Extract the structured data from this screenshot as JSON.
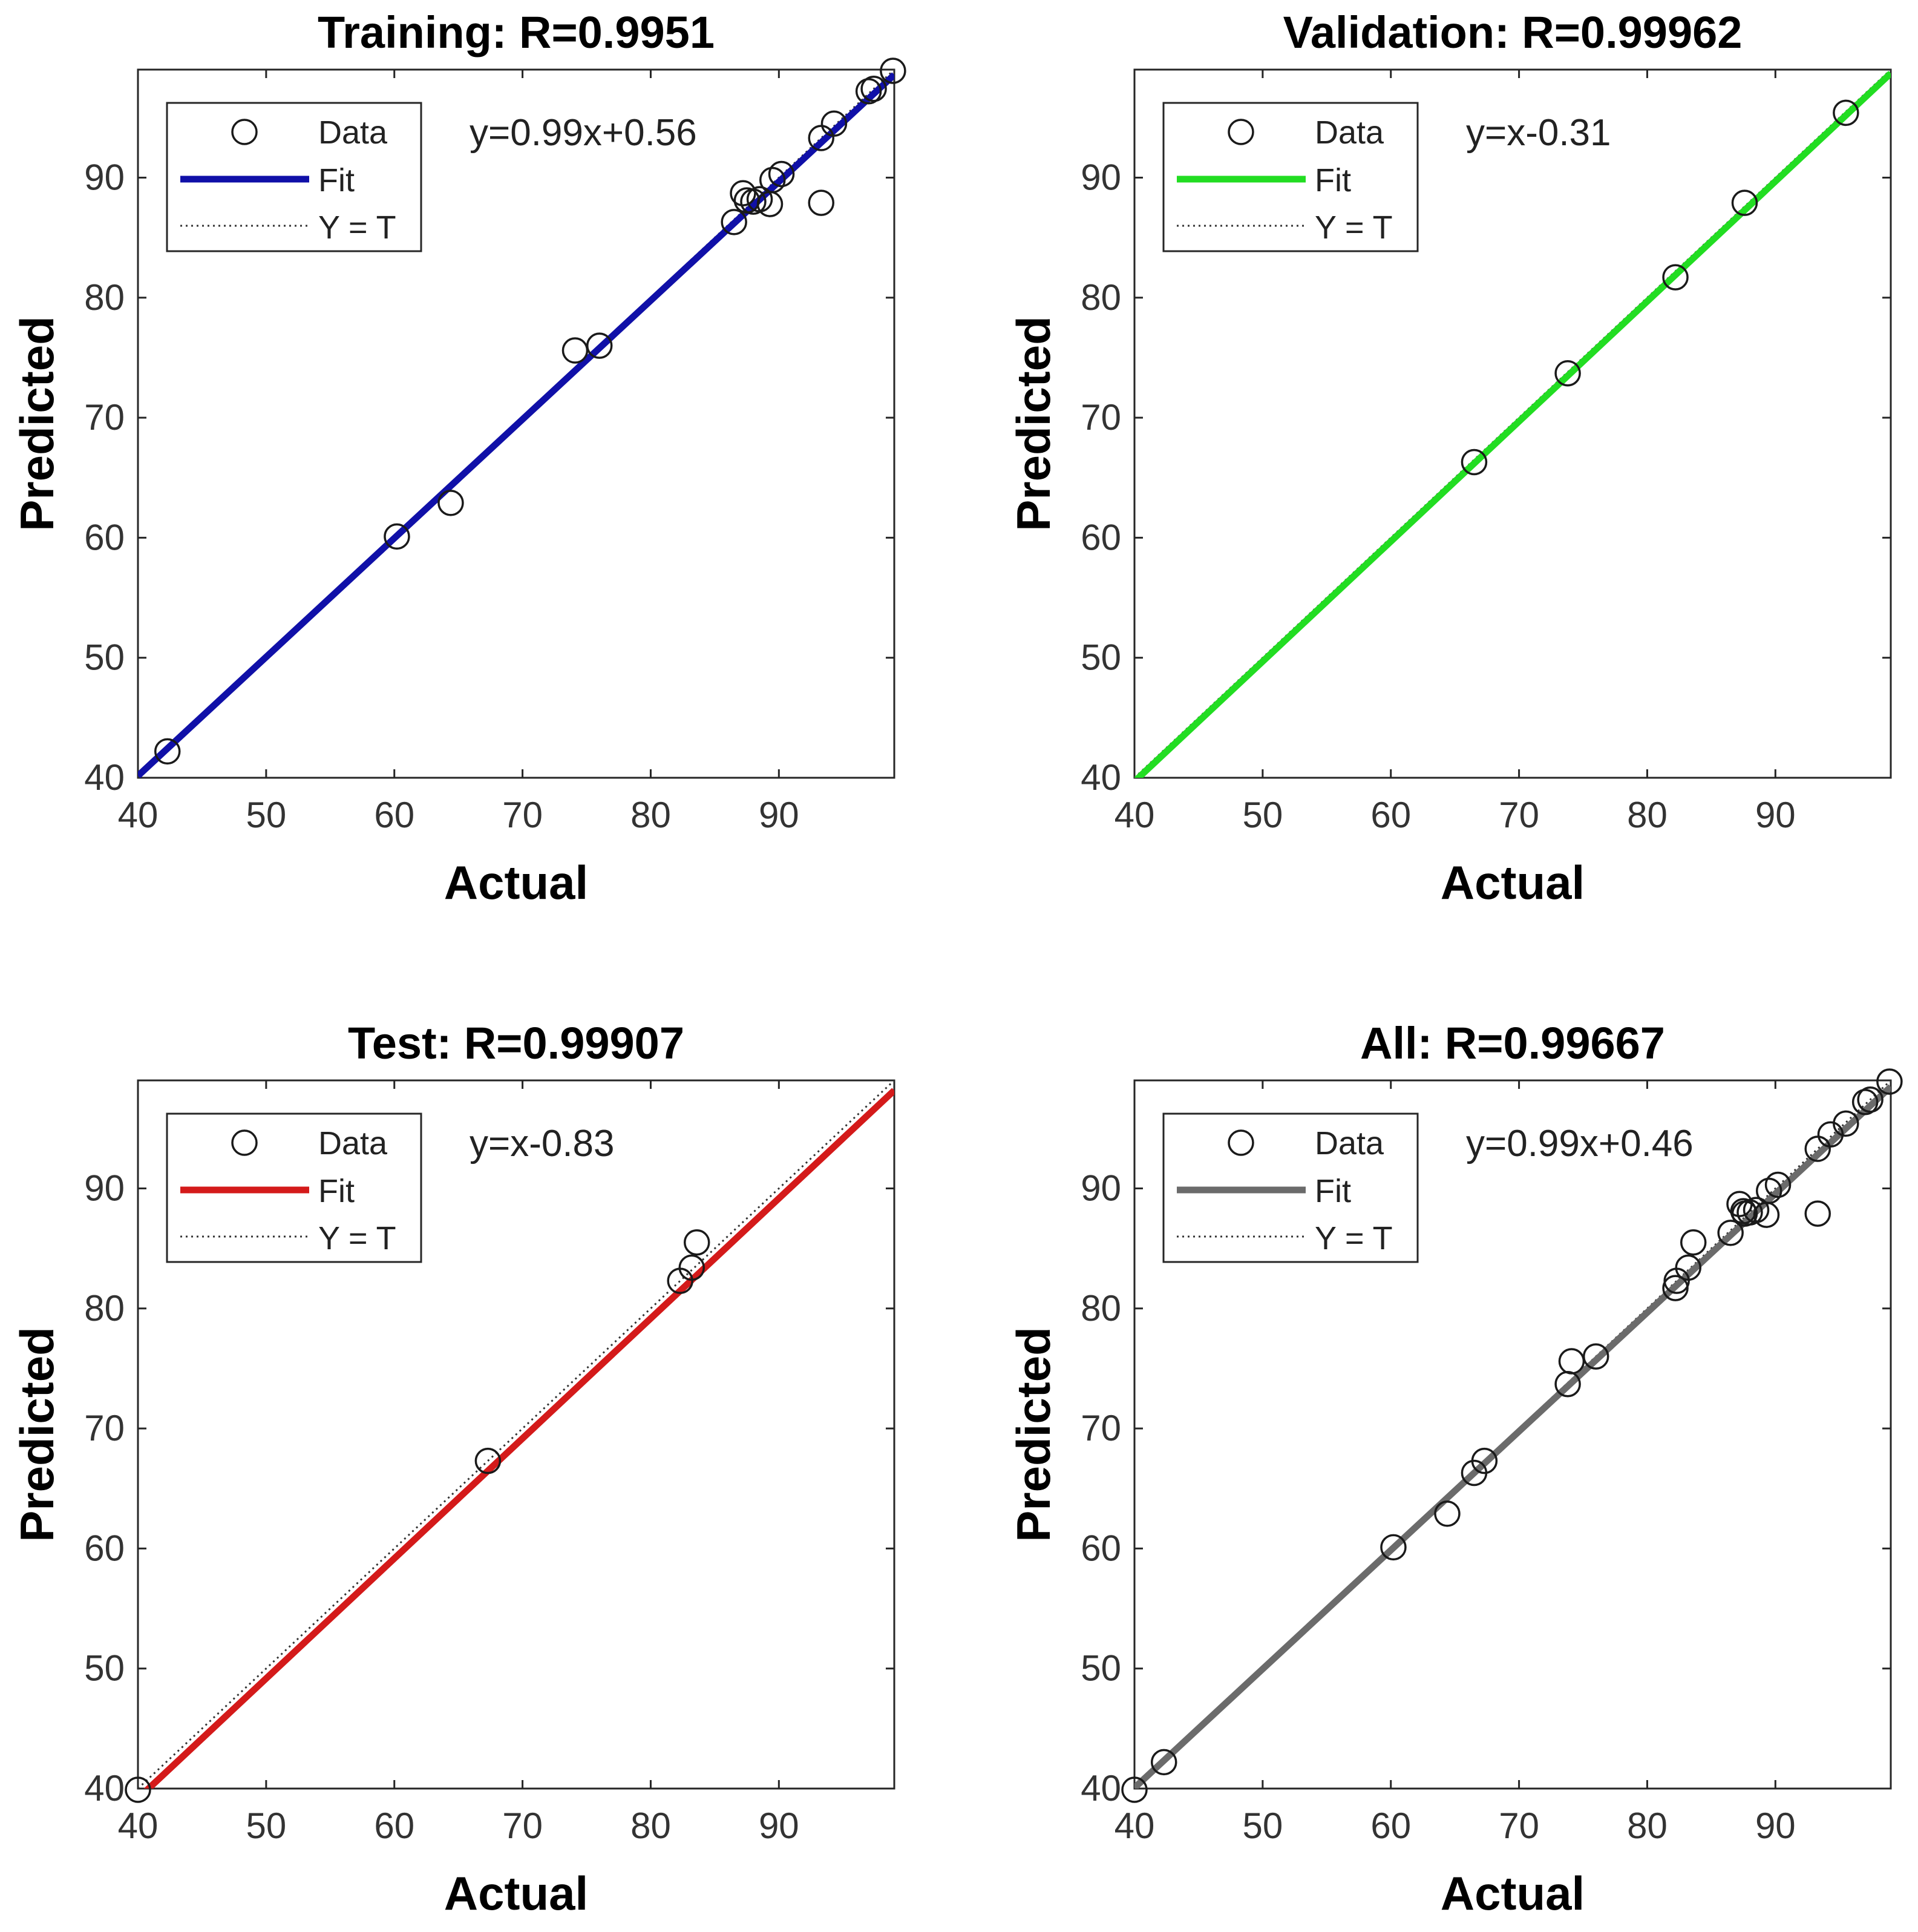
{
  "figure": {
    "legend_labels": [
      "Data",
      "Fit",
      "Y = T"
    ]
  },
  "chart_data": [
    {
      "type": "scatter",
      "title": "Training: R=0.9951",
      "xlabel": "Actual",
      "ylabel": "Predicted",
      "xlim": [
        40,
        99
      ],
      "ylim": [
        40,
        99
      ],
      "xticks": [
        40,
        50,
        60,
        70,
        80,
        90
      ],
      "yticks": [
        40,
        50,
        60,
        70,
        80,
        90
      ],
      "fit_equation": "y=0.99x+0.56",
      "fit": {
        "slope": 0.99,
        "intercept": 0.56
      },
      "fit_color": "#1010a8",
      "legend": [
        "Data",
        "Fit",
        "Y = T"
      ],
      "legend_position": "top-left",
      "points": [
        {
          "x": 42.3,
          "y": 42.2
        },
        {
          "x": 60.2,
          "y": 60.1
        },
        {
          "x": 64.4,
          "y": 62.9
        },
        {
          "x": 74.1,
          "y": 75.6
        },
        {
          "x": 76.0,
          "y": 76.0
        },
        {
          "x": 86.5,
          "y": 86.3
        },
        {
          "x": 87.2,
          "y": 88.7
        },
        {
          "x": 87.5,
          "y": 88.1
        },
        {
          "x": 88.0,
          "y": 88.0
        },
        {
          "x": 88.5,
          "y": 88.2
        },
        {
          "x": 89.3,
          "y": 87.8
        },
        {
          "x": 89.5,
          "y": 89.8
        },
        {
          "x": 90.2,
          "y": 90.3
        },
        {
          "x": 93.3,
          "y": 87.9
        },
        {
          "x": 93.3,
          "y": 93.3
        },
        {
          "x": 94.3,
          "y": 94.5
        },
        {
          "x": 97.0,
          "y": 97.2
        },
        {
          "x": 97.4,
          "y": 97.4
        },
        {
          "x": 98.9,
          "y": 98.9
        }
      ]
    },
    {
      "type": "scatter",
      "title": "Validation: R=0.99962",
      "xlabel": "Actual",
      "ylabel": "Predicted",
      "xlim": [
        40,
        99
      ],
      "ylim": [
        40,
        99
      ],
      "xticks": [
        40,
        50,
        60,
        70,
        80,
        90
      ],
      "yticks": [
        40,
        50,
        60,
        70,
        80,
        90
      ],
      "fit_equation": "y=x-0.31",
      "fit": {
        "slope": 1.0,
        "intercept": -0.31
      },
      "fit_color": "#22dd22",
      "legend": [
        "Data",
        "Fit",
        "Y = T"
      ],
      "legend_position": "top-left",
      "points": [
        {
          "x": 66.5,
          "y": 66.3
        },
        {
          "x": 73.8,
          "y": 73.7
        },
        {
          "x": 82.2,
          "y": 81.7
        },
        {
          "x": 87.6,
          "y": 87.9
        },
        {
          "x": 95.5,
          "y": 95.4
        }
      ]
    },
    {
      "type": "scatter",
      "title": "Test: R=0.99907",
      "xlabel": "Actual",
      "ylabel": "Predicted",
      "xlim": [
        40,
        99
      ],
      "ylim": [
        40,
        99
      ],
      "xticks": [
        40,
        50,
        60,
        70,
        80,
        90
      ],
      "yticks": [
        40,
        50,
        60,
        70,
        80,
        90
      ],
      "fit_equation": "y=x-0.83",
      "fit": {
        "slope": 1.0,
        "intercept": -0.83
      },
      "fit_color": "#d41a1a",
      "legend": [
        "Data",
        "Fit",
        "Y = T"
      ],
      "legend_position": "top-left",
      "points": [
        {
          "x": 40.0,
          "y": 39.9
        },
        {
          "x": 67.3,
          "y": 67.3
        },
        {
          "x": 82.3,
          "y": 82.3
        },
        {
          "x": 83.2,
          "y": 83.4
        },
        {
          "x": 83.6,
          "y": 85.5
        }
      ]
    },
    {
      "type": "scatter",
      "title": "All: R=0.99667",
      "xlabel": "Actual",
      "ylabel": "Predicted",
      "xlim": [
        40,
        99
      ],
      "ylim": [
        40,
        99
      ],
      "xticks": [
        40,
        50,
        60,
        70,
        80,
        90
      ],
      "yticks": [
        40,
        50,
        60,
        70,
        80,
        90
      ],
      "fit_equation": "y=0.99x+0.46",
      "fit": {
        "slope": 0.99,
        "intercept": 0.46
      },
      "fit_color": "#6b6b6b",
      "legend": [
        "Data",
        "Fit",
        "Y = T"
      ],
      "legend_position": "top-left",
      "points": [
        {
          "x": 40.0,
          "y": 39.9
        },
        {
          "x": 42.3,
          "y": 42.2
        },
        {
          "x": 60.2,
          "y": 60.1
        },
        {
          "x": 64.4,
          "y": 62.9
        },
        {
          "x": 66.5,
          "y": 66.3
        },
        {
          "x": 67.3,
          "y": 67.3
        },
        {
          "x": 73.8,
          "y": 73.7
        },
        {
          "x": 74.1,
          "y": 75.6
        },
        {
          "x": 76.0,
          "y": 76.0
        },
        {
          "x": 82.2,
          "y": 81.7
        },
        {
          "x": 82.3,
          "y": 82.3
        },
        {
          "x": 83.2,
          "y": 83.4
        },
        {
          "x": 83.6,
          "y": 85.5
        },
        {
          "x": 86.5,
          "y": 86.3
        },
        {
          "x": 87.2,
          "y": 88.7
        },
        {
          "x": 87.5,
          "y": 88.1
        },
        {
          "x": 87.6,
          "y": 87.9
        },
        {
          "x": 88.0,
          "y": 88.0
        },
        {
          "x": 88.5,
          "y": 88.2
        },
        {
          "x": 89.3,
          "y": 87.8
        },
        {
          "x": 89.5,
          "y": 89.8
        },
        {
          "x": 90.2,
          "y": 90.3
        },
        {
          "x": 93.3,
          "y": 87.9
        },
        {
          "x": 93.3,
          "y": 93.3
        },
        {
          "x": 94.3,
          "y": 94.5
        },
        {
          "x": 95.5,
          "y": 95.4
        },
        {
          "x": 97.0,
          "y": 97.2
        },
        {
          "x": 97.4,
          "y": 97.4
        },
        {
          "x": 98.9,
          "y": 98.9
        }
      ]
    }
  ]
}
